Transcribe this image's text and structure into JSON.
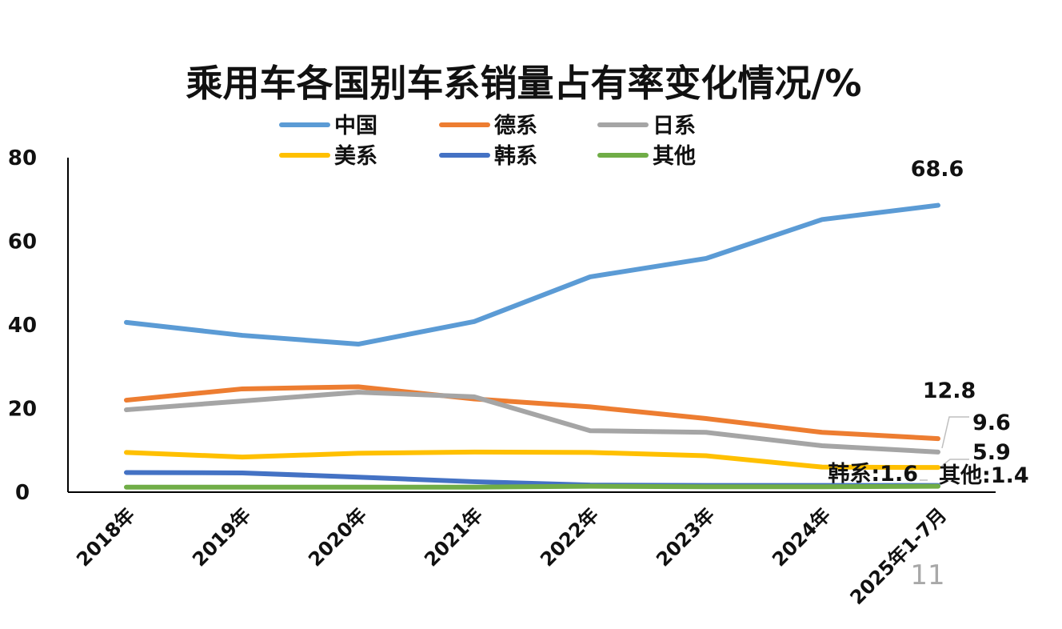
{
  "chart_data": {
    "type": "line",
    "title": "乘用车各国别车系销量占有率变化情况/%",
    "categories": [
      "2018年",
      "2019年",
      "2020年",
      "2021年",
      "2022年",
      "2023年",
      "2024年",
      "2025年1-7月"
    ],
    "ylim": [
      0,
      80
    ],
    "yticks": [
      "0",
      "20",
      "40",
      "60",
      "80"
    ],
    "grid": false,
    "legend_position": "top-center",
    "series": [
      {
        "name": "中国",
        "color": "#5B9BD5",
        "values": [
          40.6,
          37.5,
          35.4,
          40.8,
          51.5,
          55.9,
          65.2,
          68.6
        ]
      },
      {
        "name": "德系",
        "color": "#ED7D31",
        "values": [
          22.0,
          24.7,
          25.2,
          22.3,
          20.4,
          17.6,
          14.3,
          12.8
        ]
      },
      {
        "name": "日系",
        "color": "#A5A5A5",
        "values": [
          19.7,
          21.8,
          23.9,
          22.8,
          14.7,
          14.3,
          11.1,
          9.6
        ]
      },
      {
        "name": "美系",
        "color": "#FFC000",
        "values": [
          9.5,
          8.4,
          9.3,
          9.6,
          9.5,
          8.7,
          6.0,
          5.9
        ]
      },
      {
        "name": "韩系",
        "color": "#4472C4",
        "values": [
          4.7,
          4.6,
          3.6,
          2.5,
          1.7,
          1.6,
          1.6,
          1.6
        ]
      },
      {
        "name": "其他",
        "color": "#70AD47",
        "values": [
          1.2,
          1.2,
          1.2,
          1.2,
          1.4,
          1.3,
          1.3,
          1.4
        ]
      }
    ],
    "end_labels": {
      "中国": "68.6",
      "德系": "12.8",
      "日系": "9.6",
      "美系": "5.9",
      "韩系": "韩系:1.6",
      "其他": "其他:1.4"
    }
  },
  "overlay": {
    "page_number": "11"
  }
}
